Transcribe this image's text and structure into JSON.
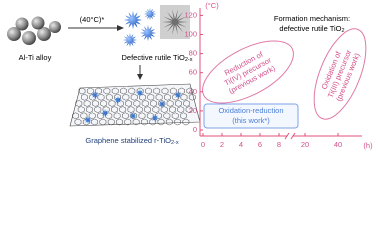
{
  "left": {
    "alloy_label": "Al-Ti alloy",
    "condition": "(40°C)*",
    "product_label": {
      "text": "Defective rutile TiO",
      "sub": "2-x"
    },
    "composite_label": {
      "text": "Graphene stabilized r-TiO",
      "sub": "2-x"
    }
  },
  "plot": {
    "y_unit": "(°C)",
    "x_unit": "(h)",
    "yticks": [
      0,
      20,
      40,
      60,
      80,
      100,
      120
    ],
    "xticks": [
      0,
      2,
      4,
      6,
      8,
      20,
      40
    ],
    "title": {
      "line1": "Formation mechanism:",
      "line2": "defective rutile TiO",
      "line2_sub": "2"
    },
    "regions": [
      {
        "lines": [
          "Reduction of",
          "Ti(IV) precursor",
          "(previous work)"
        ]
      },
      {
        "lines": [
          "Oxidation of",
          "Ti(III) precursor",
          "(previous work)"
        ]
      },
      {
        "lines": [
          "Oxidation-reduction",
          "(this work*)"
        ]
      }
    ]
  }
}
